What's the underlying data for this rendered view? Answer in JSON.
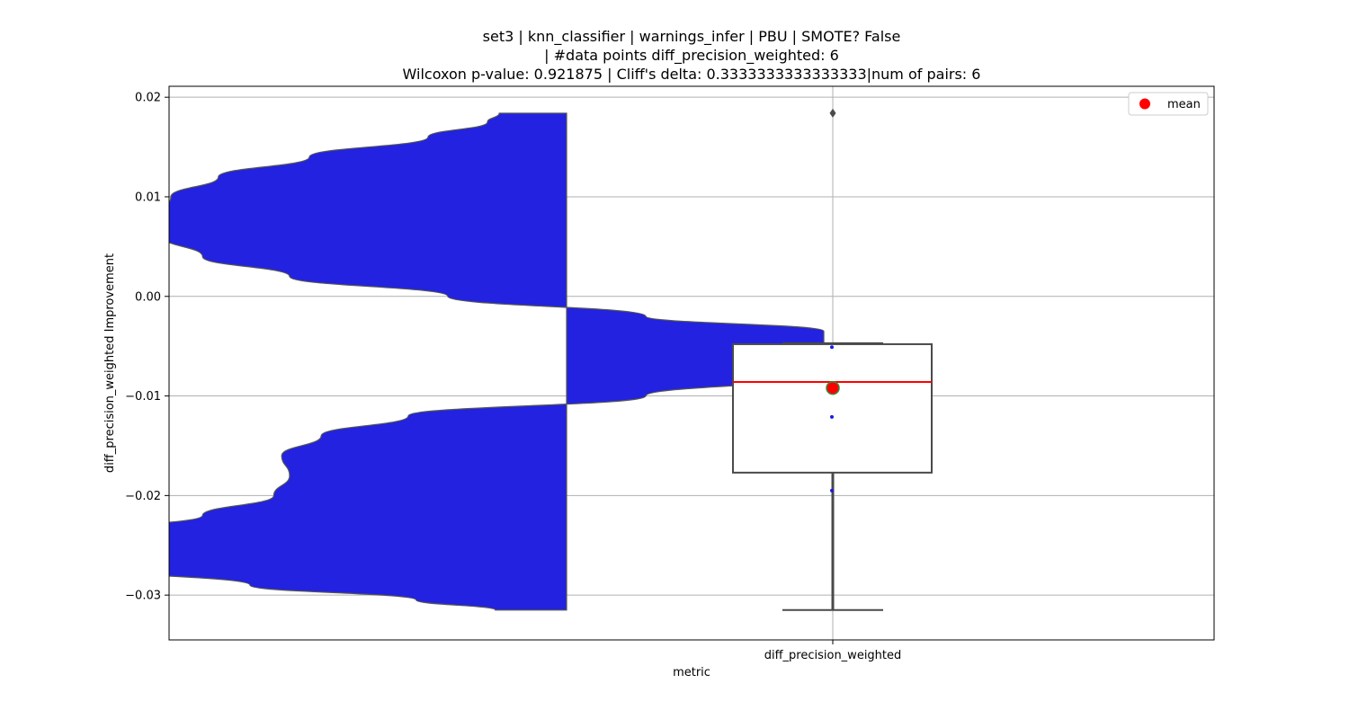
{
  "chart_data": {
    "type": "violin+box",
    "title_lines": [
      "set3 | knn_classifier | warnings_infer | PBU | SMOTE? False",
      "| #data points diff_precision_weighted: 6",
      "Wilcoxon p-value: 0.921875 | Cliff's delta: 0.3333333333333333|num of pairs: 6"
    ],
    "xlabel": "metric",
    "ylabel": "diff_precision_weighted Improvement",
    "categories": [
      "diff_precision_weighted"
    ],
    "ylim": [
      -0.0345,
      0.0211
    ],
    "yticks": [
      0.02,
      0.01,
      0.0,
      -0.01,
      -0.02,
      -0.03
    ],
    "ytick_labels": [
      "0.02",
      "0.01",
      "0.00",
      "−0.01",
      "−0.02",
      "−0.03"
    ],
    "grid": true,
    "violin": {
      "color": "#2222e0",
      "side": "left",
      "profile": [
        [
          0.0184,
          0.17
        ],
        [
          0.0175,
          0.2
        ],
        [
          0.016,
          0.35
        ],
        [
          0.014,
          0.65
        ],
        [
          0.012,
          0.88
        ],
        [
          0.01,
          1.0
        ],
        [
          0.008,
          1.03
        ],
        [
          0.006,
          1.02
        ],
        [
          0.004,
          0.92
        ],
        [
          0.002,
          0.7
        ],
        [
          0.0,
          0.3
        ],
        [
          -0.002,
          -0.2
        ],
        [
          -0.0035,
          -0.65
        ],
        [
          -0.005,
          -0.65
        ],
        [
          -0.0065,
          -0.65
        ],
        [
          -0.008,
          -0.62
        ],
        [
          -0.01,
          -0.2
        ],
        [
          -0.012,
          0.4
        ],
        [
          -0.014,
          0.62
        ],
        [
          -0.016,
          0.72
        ],
        [
          -0.018,
          0.7
        ],
        [
          -0.02,
          0.74
        ],
        [
          -0.022,
          0.92
        ],
        [
          -0.024,
          1.3
        ],
        [
          -0.0255,
          1.42
        ],
        [
          -0.027,
          1.3
        ],
        [
          -0.029,
          0.8
        ],
        [
          -0.0305,
          0.38
        ],
        [
          -0.0315,
          0.18
        ]
      ],
      "ymax": 0.0184,
      "ymin": -0.0315
    },
    "box": {
      "q1": -0.0177,
      "median": -0.0086,
      "q3": -0.0048,
      "whisker_low": -0.0315,
      "whisker_high": -0.0047,
      "outliers": [
        0.0184
      ],
      "mean": -0.0092,
      "points": [
        -0.0051,
        -0.0121,
        -0.0195
      ],
      "median_color": "#ff0000",
      "mean_color": "#ff0000",
      "points_color": "#1a1ae6"
    },
    "legend": {
      "placement": "top-right",
      "entries": [
        {
          "label": "mean",
          "color": "#ff0000"
        }
      ]
    }
  }
}
